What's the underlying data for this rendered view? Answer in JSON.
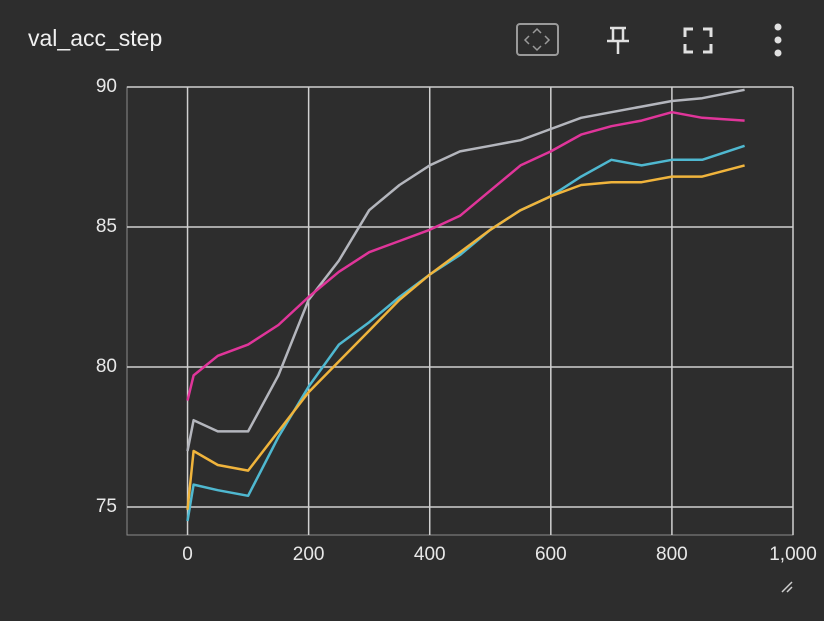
{
  "chart_data": {
    "type": "line",
    "title": "val_acc_step",
    "x": [
      0,
      10,
      50,
      100,
      150,
      200,
      250,
      300,
      350,
      400,
      450,
      500,
      550,
      600,
      650,
      700,
      750,
      800,
      850,
      920
    ],
    "series": [
      {
        "color": "#b4b6bd",
        "values": [
          77.0,
          78.1,
          77.7,
          77.7,
          79.7,
          82.4,
          83.8,
          85.6,
          86.5,
          87.2,
          87.7,
          87.9,
          88.1,
          88.5,
          88.9,
          89.1,
          89.3,
          89.5,
          89.6,
          89.9
        ]
      },
      {
        "color": "#e0359a",
        "values": [
          78.8,
          79.7,
          80.4,
          80.8,
          81.5,
          82.5,
          83.4,
          84.1,
          84.5,
          84.9,
          85.4,
          86.3,
          87.2,
          87.7,
          88.3,
          88.6,
          88.8,
          89.1,
          88.9,
          88.8
        ]
      },
      {
        "color": "#4fb8d0",
        "values": [
          74.5,
          75.8,
          75.6,
          75.4,
          77.5,
          79.3,
          80.8,
          81.6,
          82.5,
          83.3,
          84.0,
          84.9,
          85.6,
          86.1,
          86.8,
          87.4,
          87.2,
          87.4,
          87.4,
          87.9
        ]
      },
      {
        "color": "#f0b43c",
        "values": [
          74.9,
          77.0,
          76.5,
          76.3,
          77.7,
          79.1,
          80.2,
          81.3,
          82.4,
          83.3,
          84.1,
          84.9,
          85.6,
          86.1,
          86.5,
          86.6,
          86.6,
          86.8,
          86.8,
          87.2
        ]
      }
    ],
    "xlim": [
      -100,
      1000
    ],
    "xticks": [
      0,
      200,
      400,
      600,
      800,
      {
        "value": 1000,
        "label": "1,000"
      }
    ],
    "ylim": [
      74,
      90
    ],
    "yticks": [
      75,
      80,
      85,
      90
    ],
    "grid": true
  }
}
